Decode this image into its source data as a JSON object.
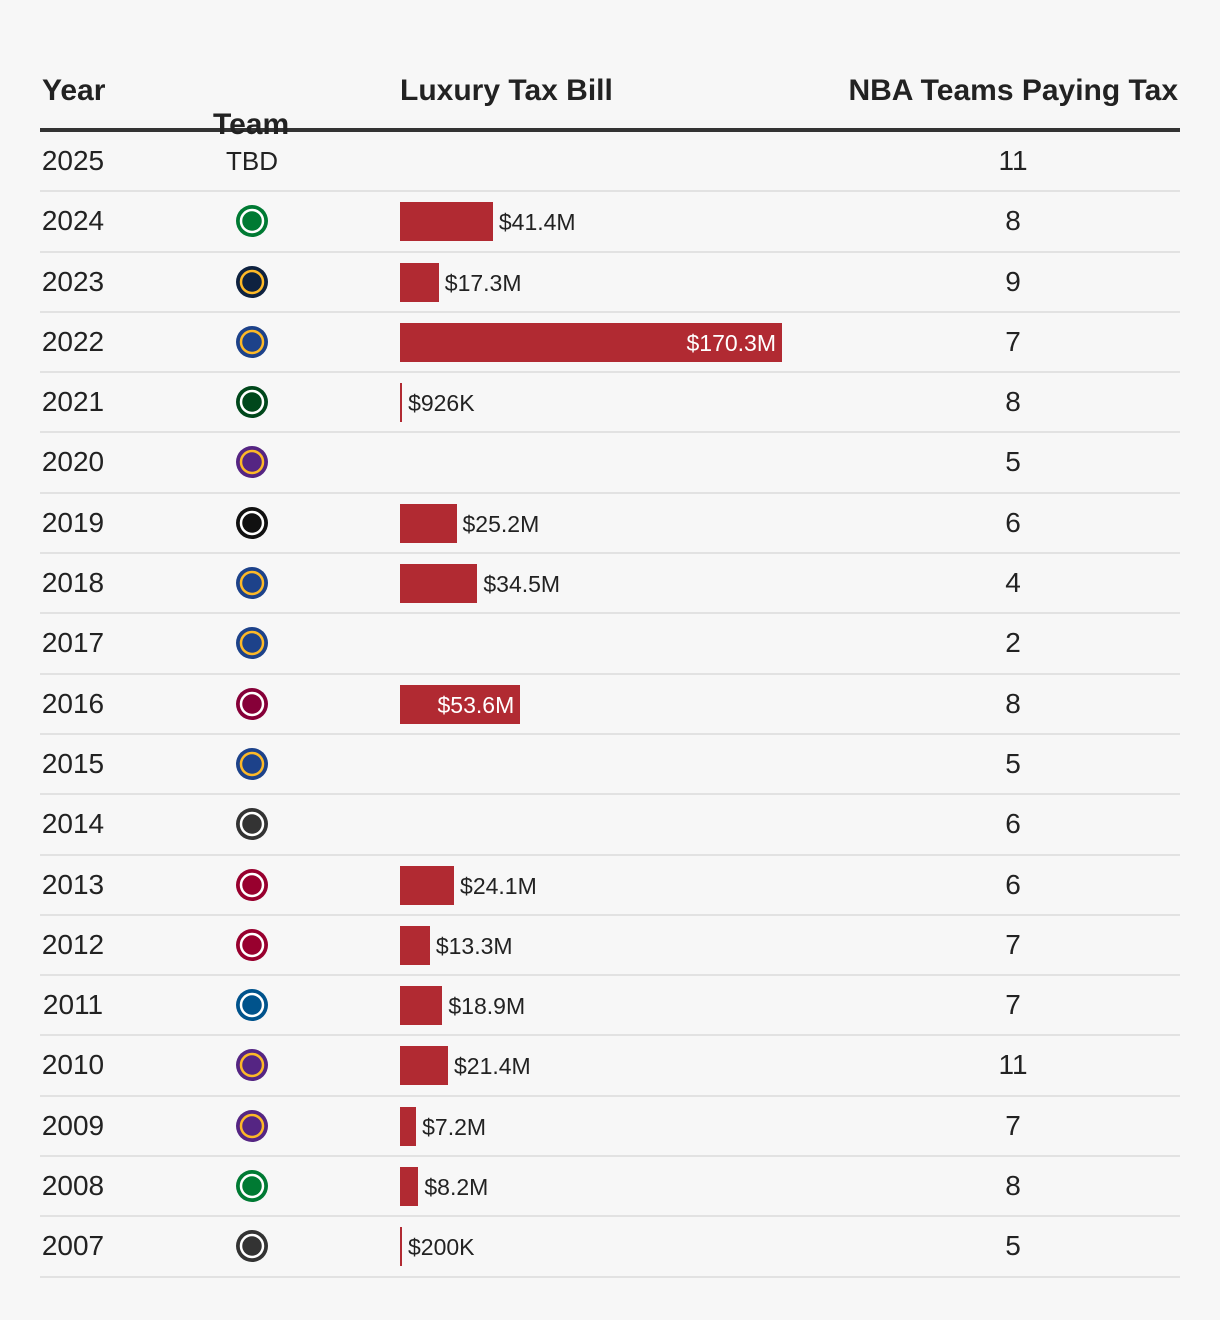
{
  "chart_data": {
    "type": "table",
    "columns": {
      "year": "Year",
      "team": "Team",
      "tax": "Luxury Tax Bill",
      "count": "NBA Teams Paying Tax"
    },
    "rows": [
      {
        "year": "2025",
        "team": "TBD",
        "tax_label": "",
        "tax_value": 0,
        "count": "11"
      },
      {
        "year": "2024",
        "team": "celtics",
        "tax_label": "$41.4M",
        "tax_value": 41.4,
        "count": "8"
      },
      {
        "year": "2023",
        "team": "nuggets",
        "tax_label": "$17.3M",
        "tax_value": 17.3,
        "count": "9"
      },
      {
        "year": "2022",
        "team": "warriors",
        "tax_label": "$170.3M",
        "tax_value": 170.3,
        "count": "7"
      },
      {
        "year": "2021",
        "team": "bucks",
        "tax_label": "$926K",
        "tax_value": 0.926,
        "count": "8"
      },
      {
        "year": "2020",
        "team": "lakers",
        "tax_label": "",
        "tax_value": 0,
        "count": "5"
      },
      {
        "year": "2019",
        "team": "raptors",
        "tax_label": "$25.2M",
        "tax_value": 25.2,
        "count": "6"
      },
      {
        "year": "2018",
        "team": "warriors",
        "tax_label": "$34.5M",
        "tax_value": 34.5,
        "count": "4"
      },
      {
        "year": "2017",
        "team": "warriors",
        "tax_label": "",
        "tax_value": 0,
        "count": "2"
      },
      {
        "year": "2016",
        "team": "cavaliers",
        "tax_label": "$53.6M",
        "tax_value": 53.6,
        "count": "8"
      },
      {
        "year": "2015",
        "team": "warriors",
        "tax_label": "",
        "tax_value": 0,
        "count": "5"
      },
      {
        "year": "2014",
        "team": "spurs",
        "tax_label": "",
        "tax_value": 0,
        "count": "6"
      },
      {
        "year": "2013",
        "team": "heat",
        "tax_label": "$24.1M",
        "tax_value": 24.1,
        "count": "6"
      },
      {
        "year": "2012",
        "team": "heat",
        "tax_label": "$13.3M",
        "tax_value": 13.3,
        "count": "7"
      },
      {
        "year": "2011",
        "team": "mavericks",
        "tax_label": "$18.9M",
        "tax_value": 18.9,
        "count": "7"
      },
      {
        "year": "2010",
        "team": "lakers",
        "tax_label": "$21.4M",
        "tax_value": 21.4,
        "count": "11"
      },
      {
        "year": "2009",
        "team": "lakers",
        "tax_label": "$7.2M",
        "tax_value": 7.2,
        "count": "7"
      },
      {
        "year": "2008",
        "team": "celtics",
        "tax_label": "$8.2M",
        "tax_value": 8.2,
        "count": "8"
      },
      {
        "year": "2007",
        "team": "spurs",
        "tax_label": "$200K",
        "tax_value": 0.2,
        "count": "5"
      }
    ],
    "tax_max": 170.3,
    "bar_color": "#b12a32",
    "team_colors": {
      "celtics": "#007a33",
      "nuggets": "#0e2240",
      "warriors": "#1d428a",
      "bucks": "#00471b",
      "lakers": "#552583",
      "raptors": "#111111",
      "cavaliers": "#860038",
      "spurs": "#333333",
      "heat": "#98002e",
      "mavericks": "#00538c"
    }
  }
}
